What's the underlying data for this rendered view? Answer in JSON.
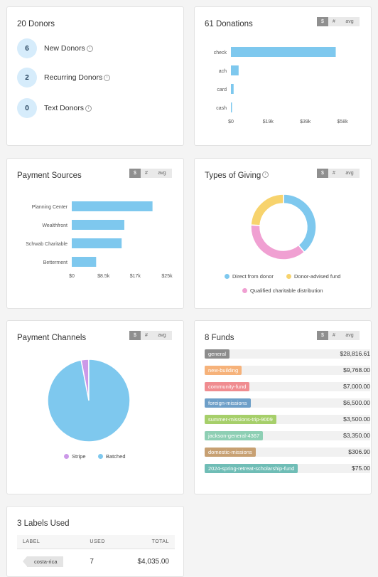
{
  "donors": {
    "title": "20 Donors",
    "rows": [
      {
        "count": "6",
        "label": "New Donors"
      },
      {
        "count": "2",
        "label": "Recurring Donors"
      },
      {
        "count": "0",
        "label": "Text Donors"
      }
    ],
    "info_icon": "info-icon"
  },
  "toggle": {
    "dollar": "$",
    "count": "#",
    "avg": "avg"
  },
  "donations": {
    "title": "61 Donations",
    "chart_data": {
      "type": "bar",
      "orientation": "horizontal",
      "categories": [
        "check",
        "ach",
        "card",
        "cash"
      ],
      "values": [
        54500,
        4000,
        1400,
        500
      ],
      "xlim": [
        0,
        58000
      ],
      "ticks": [
        "$0",
        "$19k",
        "$39k",
        "$58k"
      ],
      "color": "#7ec8ee"
    }
  },
  "sources": {
    "title": "Payment Sources",
    "chart_data": {
      "type": "bar",
      "orientation": "horizontal",
      "categories": [
        "Planning Center",
        "Wealthfront",
        "Schwab Charitable",
        "Betterment"
      ],
      "values": [
        21200,
        13800,
        13100,
        6400
      ],
      "xlim": [
        0,
        25000
      ],
      "ticks": [
        "$0",
        "$8.5k",
        "$17k",
        "$25k"
      ],
      "color": "#7ec8ee"
    }
  },
  "giving": {
    "title": "Types of Giving",
    "chart_data": {
      "type": "pie",
      "style": "donut",
      "series": [
        {
          "name": "Direct from donor",
          "value": 39,
          "color": "#7ec8ee"
        },
        {
          "name": "Qualified charitable distribution",
          "value": 37,
          "color": "#f0a0d2"
        },
        {
          "name": "Donor-advised fund",
          "value": 24,
          "color": "#f7d36d"
        }
      ]
    }
  },
  "channels": {
    "title": "Payment Channels",
    "chart_data": {
      "type": "pie",
      "series": [
        {
          "name": "Stripe",
          "value": 3,
          "color": "#cc99e8"
        },
        {
          "name": "Batched",
          "value": 97,
          "color": "#7ec8ee"
        }
      ]
    }
  },
  "funds": {
    "title": "8 Funds",
    "items": [
      {
        "name": "general",
        "amount": "$28,816.61",
        "color": "#8c8c8c"
      },
      {
        "name": "new-building",
        "amount": "$9,768.00",
        "color": "#f6b27a"
      },
      {
        "name": "community-fund",
        "amount": "$7,000.00",
        "color": "#f08c90"
      },
      {
        "name": "foreign-missions",
        "amount": "$6,500.00",
        "color": "#6e9fc8"
      },
      {
        "name": "summer-missions-trip-9009",
        "amount": "$3,500.00",
        "color": "#a6cf6a"
      },
      {
        "name": "jackson-general-4367",
        "amount": "$3,350.00",
        "color": "#8ecfb4"
      },
      {
        "name": "domestic-missions",
        "amount": "$306.90",
        "color": "#c7a072"
      },
      {
        "name": "2024-spring-retreat-scholarship-fund",
        "amount": "$75.00",
        "color": "#6fbdb6"
      }
    ]
  },
  "labels": {
    "title": "3 Labels Used",
    "headers": {
      "label": "LABEL",
      "used": "USED",
      "total": "TOTAL"
    },
    "rows": [
      {
        "label": "costa-rica",
        "used": "7",
        "total": "$4,035.00"
      }
    ]
  }
}
